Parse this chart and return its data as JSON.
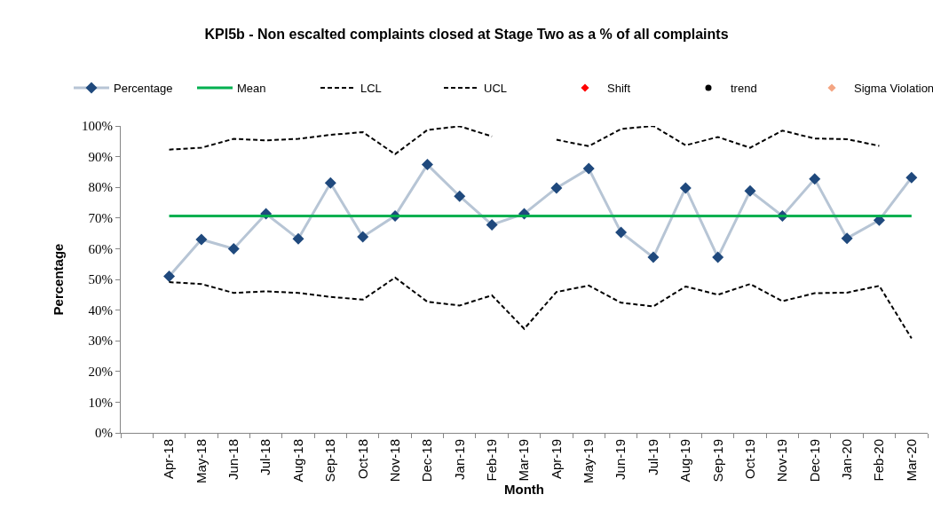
{
  "chart_data": {
    "type": "line",
    "title": "KPI5b - Non escalted complaints closed at Stage Two as a % of all complaints",
    "xlabel": "Month",
    "ylabel": "Percentage",
    "categories": [
      null,
      "Apr-18",
      "May-18",
      "Jun-18",
      "Jul-18",
      "Aug-18",
      "Sep-18",
      "Oct-18",
      "Nov-18",
      "Dec-18",
      "Jan-19",
      "Feb-19",
      "Mar-19",
      "Apr-19",
      "May-19",
      "Jun-19",
      "Jul-19",
      "Aug-19",
      "Sep-19",
      "Oct-19",
      "Nov-19",
      "Dec-19",
      "Jan-20",
      "Feb-20",
      "Mar-20"
    ],
    "series": [
      {
        "name": "Percentage",
        "color": "#1f497d",
        "marker": "diamond",
        "line_style": "solid",
        "values": [
          null,
          51.0,
          63.0,
          60.0,
          71.4,
          63.2,
          81.4,
          63.9,
          70.7,
          87.4,
          77.1,
          67.8,
          71.4,
          79.8,
          86.1,
          65.3,
          57.2,
          79.8,
          57.2,
          78.8,
          70.7,
          82.7,
          63.4,
          69.3,
          83.2
        ]
      },
      {
        "name": "Mean",
        "color": "#00b050",
        "marker": "none",
        "line_style": "solid",
        "values": [
          null,
          70.7,
          70.7,
          70.7,
          70.7,
          70.7,
          70.7,
          70.7,
          70.7,
          70.7,
          70.7,
          70.7,
          70.7,
          70.7,
          70.7,
          70.7,
          70.7,
          70.7,
          70.7,
          70.7,
          70.7,
          70.7,
          70.7,
          70.7,
          70.7
        ]
      },
      {
        "name": "LCL",
        "color": "#000000",
        "marker": "none",
        "line_style": "dashed",
        "values": [
          null,
          49.1,
          48.5,
          45.6,
          46.1,
          45.6,
          44.3,
          43.4,
          50.6,
          42.7,
          41.5,
          44.8,
          33.9,
          45.9,
          48.0,
          42.4,
          41.2,
          47.7,
          45.0,
          48.5,
          42.9,
          45.5,
          45.7,
          47.9,
          30.8
        ]
      },
      {
        "name": "UCL",
        "color": "#000000",
        "marker": "none",
        "line_style": "dashed",
        "values": [
          null,
          92.3,
          92.9,
          95.8,
          95.3,
          95.8,
          97.1,
          98.0,
          90.8,
          98.7,
          99.9,
          96.6,
          null,
          95.5,
          93.4,
          99.0,
          100,
          93.7,
          96.4,
          92.9,
          98.5,
          95.9,
          95.7,
          93.5,
          null
        ]
      },
      {
        "name": "Shift",
        "type": "scatter",
        "color": "#ff0000",
        "marker": "diamond",
        "values": [
          null,
          null,
          null,
          null,
          null,
          null,
          null,
          null,
          null,
          null,
          null,
          null,
          null,
          null,
          null,
          null,
          null,
          null,
          null,
          null,
          null,
          null,
          null,
          null,
          null
        ]
      },
      {
        "name": "trend",
        "type": "scatter",
        "color": "#000000",
        "marker": "circle",
        "values": [
          null,
          null,
          null,
          null,
          null,
          null,
          null,
          null,
          null,
          null,
          null,
          null,
          null,
          null,
          null,
          null,
          null,
          null,
          null,
          null,
          null,
          null,
          null,
          null,
          null
        ]
      },
      {
        "name": "Sigma Violation",
        "type": "scatter",
        "color": "#f4a582",
        "marker": "diamond",
        "values": [
          null,
          null,
          null,
          null,
          null,
          null,
          null,
          null,
          null,
          null,
          null,
          null,
          null,
          null,
          null,
          null,
          null,
          null,
          null,
          null,
          null,
          null,
          null,
          null,
          null
        ]
      }
    ],
    "ylim": [
      0,
      100
    ],
    "yticks": [
      {
        "value": 0,
        "label": "0%"
      },
      {
        "value": 10,
        "label": "10%"
      },
      {
        "value": 20,
        "label": "20%"
      },
      {
        "value": 30,
        "label": "30%"
      },
      {
        "value": 40,
        "label": "40%"
      },
      {
        "value": 50,
        "label": "50%"
      },
      {
        "value": 60,
        "label": "60%"
      },
      {
        "value": 70,
        "label": "70%"
      },
      {
        "value": 80,
        "label": "80%"
      },
      {
        "value": 90,
        "label": "90%"
      },
      {
        "value": 100,
        "label": "100%"
      }
    ],
    "legend": "top"
  }
}
